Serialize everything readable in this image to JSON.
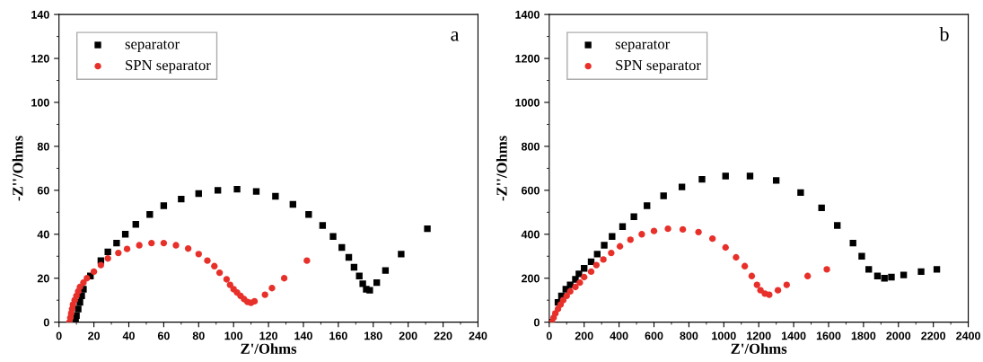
{
  "chart_data": [
    {
      "type": "scatter",
      "xlabel": "Z'/Ohms",
      "ylabel": "-Z''/Ohms",
      "annotations": [
        "a"
      ],
      "xlim": [
        0,
        240
      ],
      "xticks": [
        0,
        20,
        40,
        60,
        80,
        100,
        120,
        140,
        160,
        180,
        200,
        220,
        240
      ],
      "ylim": [
        0,
        140
      ],
      "yticks": [
        0,
        20,
        40,
        60,
        80,
        100,
        120,
        140
      ],
      "legend": "top left",
      "grid": false,
      "series": [
        {
          "name": "separator",
          "color": "#000000",
          "marker": "square",
          "x": [
            9.5,
            10,
            11,
            12,
            13,
            14,
            16,
            18,
            20,
            24,
            28,
            33,
            38,
            44,
            52,
            60,
            70,
            80,
            91,
            102,
            113,
            124,
            134,
            143,
            151,
            157,
            162,
            166,
            169,
            172,
            174,
            176,
            178,
            182,
            187,
            196,
            211
          ],
          "values": [
            0,
            3,
            6,
            9,
            12,
            15,
            null,
            21,
            null,
            28,
            32,
            36,
            40,
            44.5,
            49,
            53,
            56,
            58.5,
            60,
            60.5,
            59.5,
            57.3,
            53.6,
            49,
            44,
            39,
            34,
            29.5,
            25,
            21,
            17.5,
            15,
            14.5,
            18,
            23.5,
            31,
            42.5
          ]
        },
        {
          "name": "SPN separator",
          "color": "#e8302a",
          "marker": "circle",
          "x": [
            6,
            6.5,
            7,
            7.5,
            8,
            9,
            10,
            11,
            12,
            14,
            16,
            20,
            24,
            28,
            34,
            39,
            46,
            53,
            60,
            67,
            74,
            80,
            85,
            89,
            92,
            96,
            98,
            100,
            102,
            104,
            106,
            108,
            110,
            112,
            118,
            122,
            129,
            142
          ],
          "values": [
            0,
            2,
            4,
            6,
            8,
            10,
            12,
            14,
            16,
            18,
            20,
            23,
            26,
            29,
            31.5,
            33.3,
            35,
            36,
            36,
            35,
            33.5,
            31,
            28,
            25.5,
            22.5,
            19.5,
            17,
            15,
            13.5,
            12,
            10.5,
            9.2,
            8.8,
            9.5,
            12.5,
            15.5,
            20,
            28
          ]
        }
      ]
    },
    {
      "type": "scatter",
      "xlabel": "Z'/Ohms",
      "ylabel": "-Z''/Ohms",
      "annotations": [
        "b"
      ],
      "xlim": [
        0,
        2400
      ],
      "xticks": [
        0,
        200,
        400,
        600,
        800,
        1000,
        1200,
        1400,
        1600,
        1800,
        2000,
        2200,
        2400
      ],
      "ylim": [
        0,
        1400
      ],
      "yticks": [
        0,
        200,
        400,
        600,
        800,
        1000,
        1200,
        1400
      ],
      "legend": "top left",
      "grid": false,
      "series": [
        {
          "name": "separator",
          "color": "#000000",
          "marker": "square",
          "x": [
            10,
            20,
            35,
            50,
            70,
            95,
            120,
            150,
            170,
            200,
            240,
            275,
            315,
            360,
            420,
            485,
            560,
            655,
            760,
            875,
            1010,
            1150,
            1300,
            1440,
            1560,
            1650,
            1740,
            1790,
            1830,
            1880,
            1920,
            1960,
            2030,
            2130,
            2220
          ],
          "values": [
            0,
            null,
            null,
            90,
            120,
            150,
            170,
            195,
            220,
            245,
            275,
            310,
            350,
            390,
            435,
            480,
            530,
            575,
            615,
            650,
            665,
            665,
            645,
            590,
            520,
            440,
            360,
            300,
            240,
            210,
            200,
            205,
            215,
            230,
            240
          ]
        },
        {
          "name": "SPN separator",
          "color": "#e8302a",
          "marker": "circle",
          "x": [
            15,
            25,
            35,
            50,
            65,
            80,
            100,
            120,
            150,
            175,
            200,
            240,
            270,
            310,
            355,
            405,
            465,
            530,
            600,
            680,
            765,
            855,
            935,
            1010,
            1070,
            1120,
            1160,
            1190,
            1210,
            1235,
            1260,
            1310,
            1360,
            1480,
            1590
          ],
          "values": [
            0,
            20,
            40,
            60,
            80,
            100,
            120,
            140,
            160,
            180,
            205,
            230,
            260,
            285,
            315,
            345,
            375,
            400,
            415,
            425,
            422,
            410,
            380,
            340,
            295,
            255,
            210,
            170,
            145,
            130,
            125,
            145,
            170,
            210,
            240
          ]
        }
      ]
    }
  ]
}
